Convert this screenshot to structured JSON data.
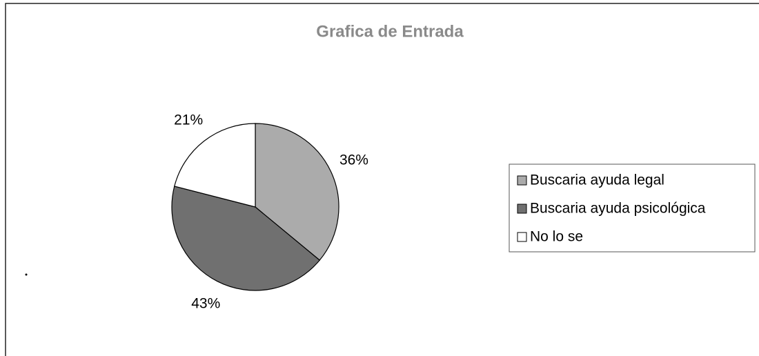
{
  "chart_data": {
    "type": "pie",
    "title": "Grafica de Entrada",
    "categories": [
      "Buscaria ayuda legal",
      "Buscaria ayuda psicológica",
      "No lo se"
    ],
    "values": [
      36,
      43,
      21
    ],
    "value_labels": [
      "36%",
      "43%",
      "21%"
    ],
    "colors": [
      "#ababab",
      "#707070",
      "#ffffff"
    ],
    "legend": "right"
  }
}
